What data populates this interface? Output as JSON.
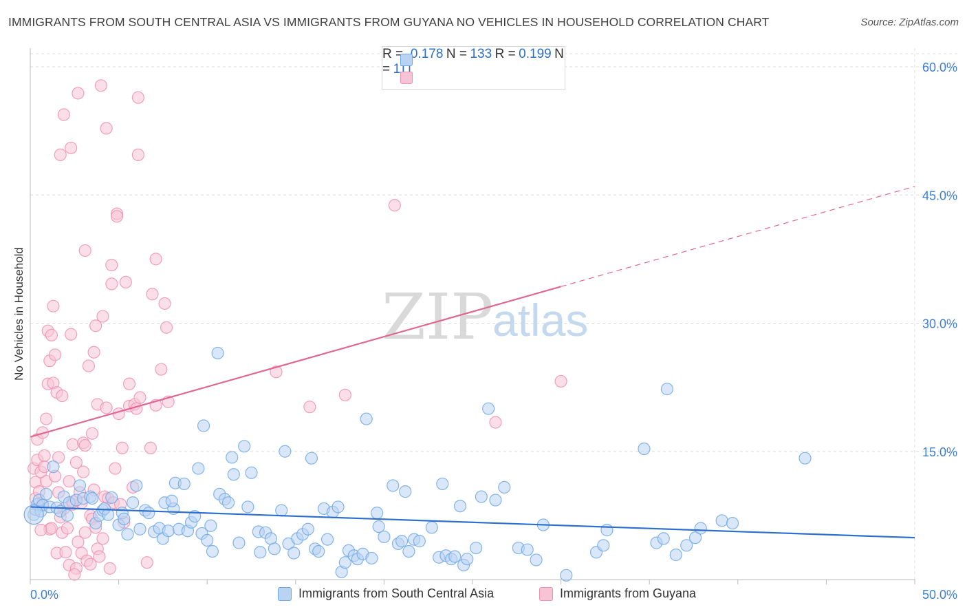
{
  "title": "IMMIGRANTS FROM SOUTH CENTRAL ASIA VS IMMIGRANTS FROM GUYANA NO VEHICLES IN HOUSEHOLD CORRELATION CHART",
  "source": "Source: ZipAtlas.com",
  "watermark": {
    "zip": "ZIP",
    "atlas": "atlas"
  },
  "colors": {
    "blue": "#6fa8e8",
    "blue_fill": "#b9d3f3",
    "blue_line": "#2d6fcf",
    "pink": "#f08fb0",
    "pink_fill": "#f7c4d5",
    "pink_line": "#e06791",
    "axis_text": "#3d7fd4",
    "grid": "#dcdcdc"
  },
  "stats": {
    "r_label": "R =",
    "n_label": "N =",
    "series": [
      {
        "r": "-0.178",
        "n": "133"
      },
      {
        "r": "0.199",
        "n": "111"
      }
    ]
  },
  "chart_data": {
    "type": "scatter",
    "title": "IMMIGRANTS FROM SOUTH CENTRAL ASIA VS IMMIGRANTS FROM GUYANA NO VEHICLES IN HOUSEHOLD CORRELATION CHART",
    "xlabel": "",
    "ylabel": "No Vehicles in Household",
    "xlim": [
      0,
      50
    ],
    "ylim": [
      0,
      62
    ],
    "x_tick_labels": [
      "0.0%",
      "50.0%"
    ],
    "y_ticks": [
      15,
      30,
      45,
      60
    ],
    "y_tick_labels": [
      "15.0%",
      "30.0%",
      "45.0%",
      "60.0%"
    ],
    "grid": true,
    "legend_position": "bottom",
    "series": [
      {
        "name": "Immigrants from South Central Asia",
        "color": "#6fa8e8",
        "trend": {
          "x": [
            0,
            50
          ],
          "y": [
            8.5,
            4.9
          ],
          "dashed_from": null
        },
        "points": [
          [
            0.2,
            7.6
          ],
          [
            0.3,
            8.2
          ],
          [
            0.4,
            8.8
          ],
          [
            0.5,
            9.3
          ],
          [
            0.6,
            8.0
          ],
          [
            0.7,
            8.7
          ],
          [
            0.9,
            10.0
          ],
          [
            1.1,
            8.5
          ],
          [
            1.3,
            13.2
          ],
          [
            1.5,
            8.4
          ],
          [
            1.7,
            8.0
          ],
          [
            1.9,
            9.7
          ],
          [
            2.1,
            7.5
          ],
          [
            2.2,
            9.0
          ],
          [
            2.6,
            9.3
          ],
          [
            2.8,
            11.0
          ],
          [
            3.0,
            9.5
          ],
          [
            3.4,
            9.7
          ],
          [
            3.7,
            6.6
          ],
          [
            3.9,
            7.5
          ],
          [
            4.1,
            8.1
          ],
          [
            4.2,
            8.3
          ],
          [
            4.4,
            7.6
          ],
          [
            4.6,
            9.6
          ],
          [
            5.0,
            6.4
          ],
          [
            5.2,
            7.8
          ],
          [
            5.3,
            7.1
          ],
          [
            5.5,
            5.3
          ],
          [
            5.8,
            9.0
          ],
          [
            6.0,
            11.0
          ],
          [
            6.2,
            5.9
          ],
          [
            6.5,
            8.1
          ],
          [
            6.7,
            7.8
          ],
          [
            7.0,
            5.6
          ],
          [
            7.3,
            6.0
          ],
          [
            7.5,
            4.8
          ],
          [
            7.6,
            9.0
          ],
          [
            7.8,
            5.7
          ],
          [
            8.1,
            8.3
          ],
          [
            8.2,
            11.3
          ],
          [
            8.4,
            5.9
          ],
          [
            8.7,
            11.2
          ],
          [
            8.9,
            5.7
          ],
          [
            9.1,
            6.7
          ],
          [
            9.3,
            7.4
          ],
          [
            9.5,
            13.0
          ],
          [
            9.7,
            5.4
          ],
          [
            10.0,
            4.6
          ],
          [
            10.2,
            6.3
          ],
          [
            10.3,
            3.3
          ],
          [
            10.7,
            10.0
          ],
          [
            11.0,
            9.4
          ],
          [
            11.2,
            9.0
          ],
          [
            11.4,
            14.3
          ],
          [
            11.5,
            12.3
          ],
          [
            11.8,
            4.3
          ],
          [
            12.1,
            15.6
          ],
          [
            12.3,
            8.5
          ],
          [
            12.5,
            12.5
          ],
          [
            12.9,
            5.6
          ],
          [
            13.0,
            3.2
          ],
          [
            13.3,
            5.5
          ],
          [
            13.6,
            4.8
          ],
          [
            13.8,
            3.6
          ],
          [
            14.2,
            8.1
          ],
          [
            14.4,
            15.0
          ],
          [
            14.6,
            4.2
          ],
          [
            14.9,
            3.1
          ],
          [
            15.1,
            4.8
          ],
          [
            15.4,
            5.3
          ],
          [
            15.7,
            5.9
          ],
          [
            15.9,
            14.2
          ],
          [
            16.1,
            3.6
          ],
          [
            16.3,
            3.3
          ],
          [
            16.6,
            8.3
          ],
          [
            16.8,
            4.7
          ],
          [
            17.1,
            7.9
          ],
          [
            17.4,
            8.5
          ],
          [
            17.6,
            0.9
          ],
          [
            17.8,
            2.0
          ],
          [
            18.0,
            3.4
          ],
          [
            18.3,
            2.8
          ],
          [
            18.5,
            2.4
          ],
          [
            18.8,
            3.0
          ],
          [
            19.0,
            18.8
          ],
          [
            19.3,
            2.5
          ],
          [
            19.6,
            7.8
          ],
          [
            19.7,
            6.2
          ],
          [
            20.0,
            5.0
          ],
          [
            20.5,
            11.0
          ],
          [
            20.8,
            4.2
          ],
          [
            21.0,
            4.5
          ],
          [
            21.2,
            10.3
          ],
          [
            21.4,
            3.3
          ],
          [
            21.7,
            4.7
          ],
          [
            22.0,
            4.5
          ],
          [
            22.7,
            6.1
          ],
          [
            23.1,
            2.6
          ],
          [
            23.3,
            11.2
          ],
          [
            23.5,
            2.8
          ],
          [
            23.8,
            2.4
          ],
          [
            24.0,
            2.7
          ],
          [
            24.3,
            8.6
          ],
          [
            24.5,
            1.7
          ],
          [
            24.7,
            2.4
          ],
          [
            25.2,
            3.7
          ],
          [
            25.5,
            9.7
          ],
          [
            25.9,
            20.0
          ],
          [
            26.3,
            9.3
          ],
          [
            26.8,
            10.8
          ],
          [
            27.6,
            3.7
          ],
          [
            28.1,
            3.5
          ],
          [
            28.6,
            2.3
          ],
          [
            29.0,
            6.4
          ],
          [
            30.3,
            0.5
          ],
          [
            32.0,
            3.2
          ],
          [
            32.4,
            4.0
          ],
          [
            32.6,
            5.8
          ],
          [
            34.7,
            15.3
          ],
          [
            35.4,
            4.3
          ],
          [
            35.8,
            4.8
          ],
          [
            36.0,
            22.3
          ],
          [
            36.5,
            2.9
          ],
          [
            37.1,
            4.0
          ],
          [
            37.6,
            4.9
          ],
          [
            37.9,
            6.0
          ],
          [
            39.1,
            6.9
          ],
          [
            39.7,
            6.6
          ],
          [
            43.8,
            14.2
          ],
          [
            10.6,
            26.5
          ],
          [
            9.8,
            18.0
          ],
          [
            8.0,
            9.2
          ],
          [
            3.5,
            9.5
          ]
        ]
      },
      {
        "name": "Immigrants from Guyana",
        "color": "#f08fb0",
        "trend": {
          "x": [
            0,
            50
          ],
          "y": [
            16.7,
            46.0
          ],
          "dashed_from": 30.0
        },
        "points": [
          [
            0.2,
            13.0
          ],
          [
            0.3,
            11.4
          ],
          [
            0.3,
            9.5
          ],
          [
            0.4,
            14.0
          ],
          [
            0.4,
            16.4
          ],
          [
            0.5,
            10.3
          ],
          [
            0.6,
            12.6
          ],
          [
            0.7,
            17.2
          ],
          [
            0.7,
            8.8
          ],
          [
            0.8,
            14.5
          ],
          [
            0.8,
            13.2
          ],
          [
            0.9,
            18.8
          ],
          [
            0.9,
            11.5
          ],
          [
            1.0,
            22.9
          ],
          [
            1.0,
            29.1
          ],
          [
            1.1,
            25.6
          ],
          [
            1.1,
            5.9
          ],
          [
            1.2,
            28.6
          ],
          [
            1.3,
            23.0
          ],
          [
            1.3,
            32.0
          ],
          [
            1.4,
            26.3
          ],
          [
            1.4,
            12.1
          ],
          [
            1.5,
            21.9
          ],
          [
            1.5,
            3.1
          ],
          [
            1.6,
            10.2
          ],
          [
            1.6,
            14.3
          ],
          [
            1.7,
            49.7
          ],
          [
            1.8,
            21.5
          ],
          [
            1.8,
            5.5
          ],
          [
            1.9,
            54.4
          ],
          [
            1.9,
            8.3
          ],
          [
            2.0,
            3.2
          ],
          [
            2.1,
            6.0
          ],
          [
            2.2,
            1.7
          ],
          [
            2.2,
            11.5
          ],
          [
            2.3,
            50.5
          ],
          [
            2.3,
            28.7
          ],
          [
            2.4,
            8.8
          ],
          [
            2.4,
            15.8
          ],
          [
            2.6,
            1.3
          ],
          [
            2.6,
            13.7
          ],
          [
            2.7,
            56.9
          ],
          [
            2.7,
            4.4
          ],
          [
            2.9,
            9.0
          ],
          [
            2.9,
            3.1
          ],
          [
            3.0,
            16.0
          ],
          [
            3.1,
            38.5
          ],
          [
            3.1,
            5.5
          ],
          [
            3.1,
            15.7
          ],
          [
            3.2,
            2.2
          ],
          [
            3.3,
            25.0
          ],
          [
            3.4,
            7.5
          ],
          [
            3.4,
            1.8
          ],
          [
            3.5,
            7.1
          ],
          [
            3.5,
            17.1
          ],
          [
            3.6,
            10.5
          ],
          [
            3.7,
            29.7
          ],
          [
            3.8,
            20.5
          ],
          [
            3.8,
            3.6
          ],
          [
            3.9,
            2.7
          ],
          [
            4.0,
            57.8
          ],
          [
            4.1,
            4.8
          ],
          [
            4.1,
            30.8
          ],
          [
            4.2,
            9.7
          ],
          [
            4.3,
            52.8
          ],
          [
            4.4,
            9.5
          ],
          [
            4.5,
            1.3
          ],
          [
            4.6,
            36.8
          ],
          [
            4.6,
            34.6
          ],
          [
            4.7,
            9.0
          ],
          [
            4.8,
            13.0
          ],
          [
            4.9,
            42.8
          ],
          [
            4.9,
            42.5
          ],
          [
            5.0,
            19.4
          ],
          [
            5.1,
            8.8
          ],
          [
            5.2,
            15.4
          ],
          [
            5.3,
            6.7
          ],
          [
            5.4,
            34.8
          ],
          [
            5.6,
            20.3
          ],
          [
            5.8,
            10.8
          ],
          [
            5.9,
            20.5
          ],
          [
            6.1,
            56.4
          ],
          [
            6.1,
            49.7
          ],
          [
            6.2,
            21.3
          ],
          [
            6.6,
            2.0
          ],
          [
            6.8,
            15.4
          ],
          [
            6.9,
            33.4
          ],
          [
            7.1,
            20.4
          ],
          [
            7.1,
            37.5
          ],
          [
            7.4,
            24.6
          ],
          [
            7.6,
            32.3
          ],
          [
            7.7,
            29.5
          ],
          [
            7.8,
            20.8
          ],
          [
            5.6,
            22.9
          ],
          [
            2.5,
            0.6
          ],
          [
            3.6,
            26.6
          ],
          [
            4.3,
            20.1
          ],
          [
            6.0,
            20.0
          ],
          [
            3.0,
            12.6
          ],
          [
            2.8,
            10.2
          ],
          [
            13.9,
            24.3
          ],
          [
            15.8,
            20.2
          ],
          [
            17.8,
            21.6
          ],
          [
            20.6,
            43.8
          ],
          [
            26.3,
            18.4
          ],
          [
            30.0,
            23.2
          ],
          [
            1.2,
            6.0
          ],
          [
            0.6,
            5.8
          ],
          [
            1.7,
            7.3
          ],
          [
            2.4,
            9.1
          ],
          [
            3.7,
            6.1
          ]
        ]
      }
    ]
  },
  "legend": {
    "items": [
      {
        "label": "Immigrants from South Central Asia"
      },
      {
        "label": "Immigrants from Guyana"
      }
    ]
  }
}
